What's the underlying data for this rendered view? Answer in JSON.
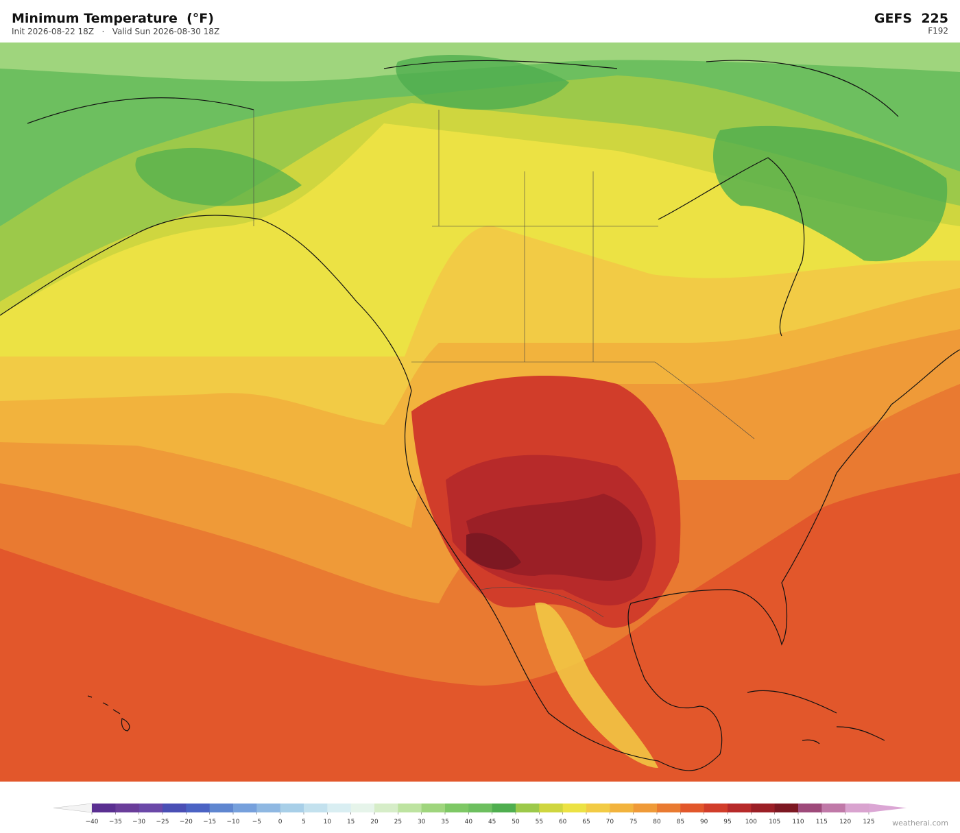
{
  "header": {
    "title": "Minimum Temperature  (°F)",
    "subtitle": "Init 2026-08-22 18Z   ·   Valid Sun 2026-08-30 18Z",
    "model": "GEFS  225",
    "forecast_hour": "F192"
  },
  "colorbar": {
    "labels": [
      "−40",
      "−35",
      "−30",
      "−25",
      "−20",
      "−15",
      "−10",
      "−5",
      "0",
      "5",
      "10",
      "15",
      "20",
      "25",
      "30",
      "35",
      "40",
      "45",
      "50",
      "55",
      "60",
      "65",
      "70",
      "75",
      "80",
      "85",
      "90",
      "95",
      "100",
      "105",
      "110",
      "115",
      "120",
      "125"
    ],
    "colors": [
      "#5a2f91",
      "#6a3d9a",
      "#6b48a8",
      "#4a4fb5",
      "#4b63c4",
      "#5f86d0",
      "#76a0dc",
      "#8fb8e2",
      "#a8cfe8",
      "#c3e1ee",
      "#d9eef2",
      "#e6f4ea",
      "#d6edc8",
      "#bde3a0",
      "#9fd57d",
      "#7ec865",
      "#6dbf5f",
      "#4fae4f",
      "#9cc94a",
      "#cfd63f",
      "#ece244",
      "#f2cb45",
      "#f2b33d",
      "#ef9a38",
      "#e97a31",
      "#e2572b",
      "#d13d2a",
      "#b72a2a",
      "#9b1f26",
      "#7d1822",
      "#9e4a7a",
      "#c079a8",
      "#d9a3cf"
    ],
    "under_color": "#f4f4f4",
    "over_color": "#dba6d4"
  },
  "watermark": "weatherai.com"
}
